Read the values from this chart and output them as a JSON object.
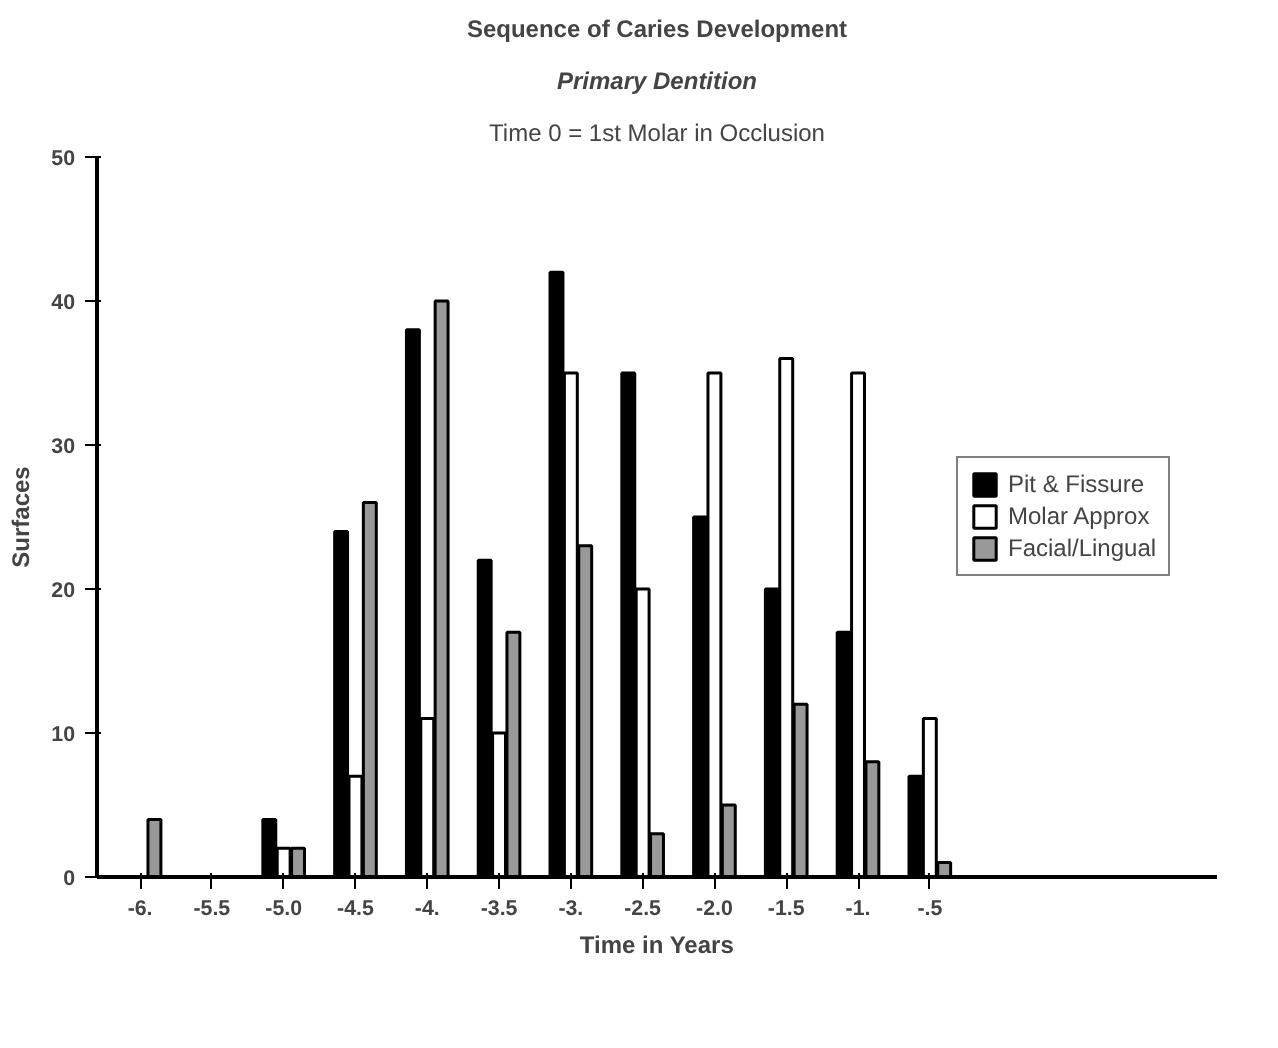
{
  "chart_data": {
    "type": "bar",
    "title": "Sequence of Caries Development",
    "subtitle": "Primary Dentition",
    "xlabel": "Time in Years",
    "ylabel": "Surfaces",
    "annotations": [
      "Time 0 = 1st Molar in Occlusion"
    ],
    "categories": [
      "-6.",
      "-5.5",
      "-5.0",
      "-4.5",
      "-4.",
      "-3.5",
      "-3.",
      "-2.5",
      "-2.0",
      "-1.5",
      "-1.",
      "-.5"
    ],
    "series": [
      {
        "name": "Pit & Fissure",
        "color": "#000000",
        "values": [
          0,
          0,
          4,
          24,
          38,
          22,
          42,
          35,
          25,
          20,
          17,
          7
        ]
      },
      {
        "name": "Molar Approx",
        "color": "#ffffff",
        "values": [
          0,
          0,
          2,
          7,
          11,
          10,
          35,
          20,
          35,
          36,
          35,
          11
        ]
      },
      {
        "name": "Facial/Lingual",
        "color": "#999999",
        "values": [
          4,
          0,
          2,
          26,
          40,
          17,
          23,
          3,
          5,
          12,
          8,
          1
        ]
      }
    ],
    "ylim": [
      0,
      50
    ],
    "yticks": [
      0,
      10,
      20,
      30,
      40,
      50
    ],
    "legend": "right"
  }
}
